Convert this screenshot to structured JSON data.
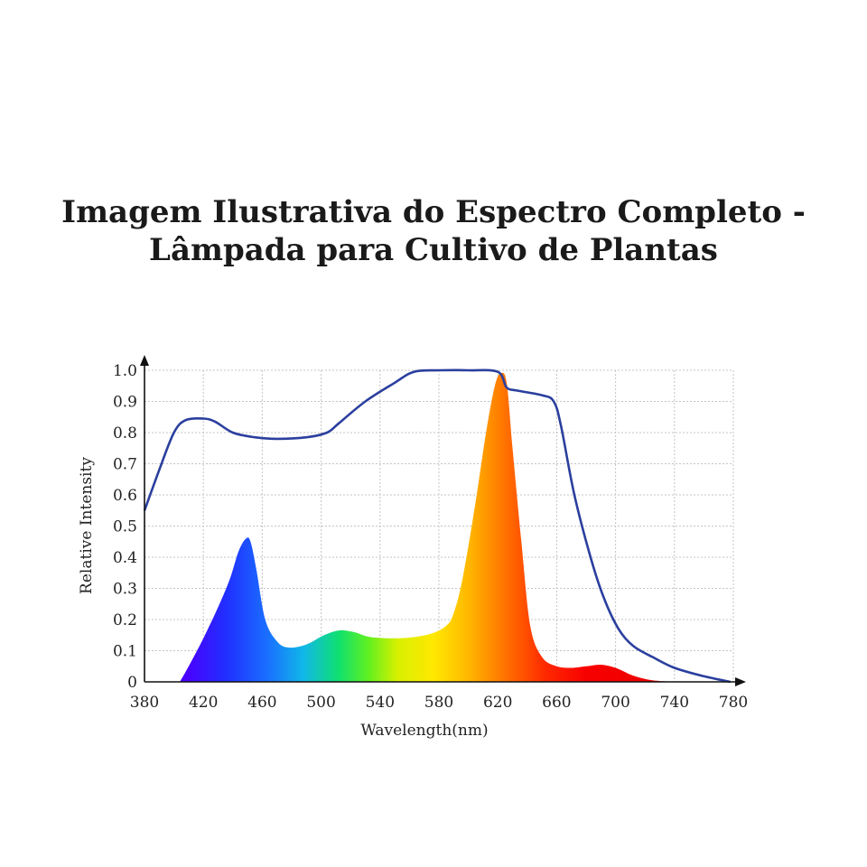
{
  "title": {
    "line1": "Imagem Ilustrativa do Espectro Completo -",
    "line2": "Lâmpada para Cultivo de Plantas"
  },
  "chart_data": {
    "type": "area",
    "xlabel": "Wavelength(nm)",
    "ylabel": "Relative Intensity",
    "xlim": [
      380,
      780
    ],
    "ylim": [
      0,
      1.0
    ],
    "x_ticks": [
      380,
      420,
      460,
      500,
      540,
      580,
      620,
      660,
      700,
      740,
      780
    ],
    "y_ticks": [
      {
        "value": 0,
        "label": "0"
      },
      {
        "value": 0.1,
        "label": "0.1"
      },
      {
        "value": 0.2,
        "label": "0.2"
      },
      {
        "value": 0.3,
        "label": "0.3"
      },
      {
        "value": 0.4,
        "label": "0.4"
      },
      {
        "value": 0.5,
        "label": "0.5"
      },
      {
        "value": 0.6,
        "label": "0.6"
      },
      {
        "value": 0.7,
        "label": "0.7"
      },
      {
        "value": 0.8,
        "label": "0.8"
      },
      {
        "value": 0.9,
        "label": "0.9"
      },
      {
        "value": 1.0,
        "label": "1.0"
      }
    ],
    "grid": true,
    "series": [
      {
        "style": "filled-area",
        "colors": "visible-spectrum",
        "points": [
          [
            404,
            0
          ],
          [
            410,
            0.05
          ],
          [
            420,
            0.14
          ],
          [
            430,
            0.24
          ],
          [
            438,
            0.33
          ],
          [
            444,
            0.42
          ],
          [
            449,
            0.46
          ],
          [
            452,
            0.45
          ],
          [
            456,
            0.36
          ],
          [
            462,
            0.2
          ],
          [
            470,
            0.13
          ],
          [
            478,
            0.11
          ],
          [
            490,
            0.12
          ],
          [
            502,
            0.15
          ],
          [
            512,
            0.165
          ],
          [
            522,
            0.16
          ],
          [
            532,
            0.145
          ],
          [
            545,
            0.14
          ],
          [
            560,
            0.142
          ],
          [
            575,
            0.155
          ],
          [
            585,
            0.18
          ],
          [
            590,
            0.22
          ],
          [
            596,
            0.33
          ],
          [
            604,
            0.55
          ],
          [
            612,
            0.8
          ],
          [
            618,
            0.95
          ],
          [
            622,
            0.99
          ],
          [
            626,
            0.96
          ],
          [
            630,
            0.75
          ],
          [
            636,
            0.45
          ],
          [
            642,
            0.18
          ],
          [
            650,
            0.08
          ],
          [
            660,
            0.05
          ],
          [
            670,
            0.045
          ],
          [
            680,
            0.05
          ],
          [
            690,
            0.055
          ],
          [
            700,
            0.045
          ],
          [
            712,
            0.02
          ],
          [
            725,
            0.005
          ],
          [
            740,
            0
          ]
        ]
      },
      {
        "style": "line",
        "color": "#2b3f9e",
        "points": [
          [
            380,
            0.55
          ],
          [
            390,
            0.68
          ],
          [
            400,
            0.8
          ],
          [
            408,
            0.84
          ],
          [
            420,
            0.845
          ],
          [
            428,
            0.835
          ],
          [
            440,
            0.8
          ],
          [
            455,
            0.785
          ],
          [
            470,
            0.78
          ],
          [
            490,
            0.785
          ],
          [
            504,
            0.8
          ],
          [
            512,
            0.83
          ],
          [
            530,
            0.9
          ],
          [
            550,
            0.96
          ],
          [
            563,
            0.995
          ],
          [
            580,
            1.0
          ],
          [
            600,
            1.0
          ],
          [
            620,
            0.995
          ],
          [
            626,
            0.945
          ],
          [
            633,
            0.935
          ],
          [
            650,
            0.92
          ],
          [
            658,
            0.9
          ],
          [
            663,
            0.82
          ],
          [
            672,
            0.6
          ],
          [
            683,
            0.4
          ],
          [
            692,
            0.27
          ],
          [
            702,
            0.17
          ],
          [
            712,
            0.115
          ],
          [
            725,
            0.08
          ],
          [
            740,
            0.045
          ],
          [
            760,
            0.018
          ],
          [
            778,
            0
          ]
        ]
      }
    ]
  }
}
